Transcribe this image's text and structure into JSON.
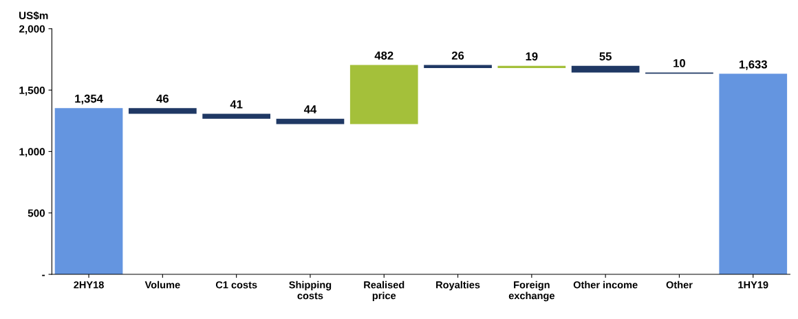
{
  "chart_data": {
    "type": "bar",
    "ylabel": "US$m",
    "categories": [
      "2HY18",
      "Volume",
      "C1 costs",
      "Shipping costs",
      "Realised price",
      "Royalties",
      "Foreign exchange",
      "Other income",
      "Other",
      "1HY19"
    ],
    "values": [
      1354,
      46,
      41,
      44,
      482,
      26,
      19,
      55,
      10,
      1633
    ],
    "base": [
      0,
      1308,
      1267,
      1223,
      1223,
      1679,
      1679,
      1643,
      1633,
      0
    ],
    "colors": [
      "#6495e0",
      "#1f3864",
      "#1f3864",
      "#1f3864",
      "#a4c03a",
      "#1f3864",
      "#a4c03a",
      "#1f3864",
      "#1f3864",
      "#6495e0"
    ],
    "value_labels": [
      "1,354",
      "46",
      "41",
      "44",
      "482",
      "26",
      "19",
      "55",
      "10",
      "1,633"
    ],
    "ylim": [
      0,
      2000
    ],
    "yticks": [
      {
        "value": 0,
        "label": "-"
      },
      {
        "value": 500,
        "label": "500"
      },
      {
        "value": 1000,
        "label": "1,000"
      },
      {
        "value": 1500,
        "label": "1,500"
      },
      {
        "value": 2000,
        "label": "2,000"
      }
    ],
    "grid": false,
    "legend": false
  }
}
